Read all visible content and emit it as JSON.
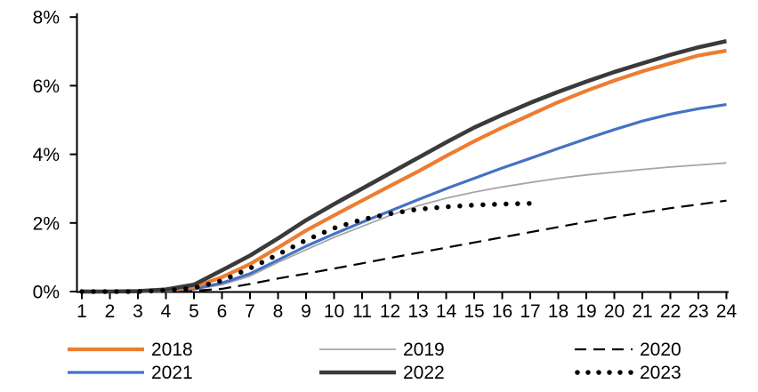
{
  "chart_data": {
    "type": "line",
    "title": "",
    "xlabel": "",
    "ylabel": "",
    "grid": false,
    "legend_position": "bottom",
    "xlim": [
      1,
      24
    ],
    "ylim": [
      0,
      8
    ],
    "y_tick_labels": [
      "0%",
      "2%",
      "4%",
      "6%",
      "8%"
    ],
    "y_tick_values": [
      0,
      2,
      4,
      6,
      8
    ],
    "categories": [
      "1",
      "2",
      "3",
      "4",
      "5",
      "6",
      "7",
      "8",
      "9",
      "10",
      "11",
      "12",
      "13",
      "14",
      "15",
      "16",
      "17",
      "18",
      "19",
      "20",
      "21",
      "22",
      "23",
      "24"
    ],
    "series": [
      {
        "name": "2018",
        "color": "#ED7D31",
        "style": "solid",
        "stroke_width": 4.2,
        "values": [
          0,
          0,
          0.01,
          0.04,
          0.13,
          0.42,
          0.8,
          1.28,
          1.78,
          2.22,
          2.65,
          3.08,
          3.5,
          3.95,
          4.38,
          4.78,
          5.15,
          5.52,
          5.85,
          6.15,
          6.42,
          6.65,
          6.88,
          7.02
        ]
      },
      {
        "name": "2019",
        "color": "#A6A6A6",
        "style": "solid",
        "stroke_width": 1.8,
        "values": [
          0,
          0,
          0,
          0.02,
          0.06,
          0.2,
          0.45,
          0.85,
          1.22,
          1.58,
          1.9,
          2.22,
          2.5,
          2.72,
          2.9,
          3.05,
          3.18,
          3.3,
          3.4,
          3.48,
          3.56,
          3.63,
          3.69,
          3.75
        ]
      },
      {
        "name": "2020",
        "color": "#000000",
        "style": "dashed",
        "stroke_width": 2.2,
        "values": [
          0,
          0,
          0,
          0,
          0.02,
          0.08,
          0.22,
          0.38,
          0.52,
          0.67,
          0.82,
          0.98,
          1.13,
          1.28,
          1.43,
          1.58,
          1.73,
          1.88,
          2.03,
          2.17,
          2.3,
          2.43,
          2.54,
          2.65
        ]
      },
      {
        "name": "2021",
        "color": "#4472C4",
        "style": "solid",
        "stroke_width": 3.2,
        "values": [
          0,
          0,
          0,
          0.02,
          0.08,
          0.25,
          0.52,
          0.92,
          1.32,
          1.68,
          2.02,
          2.35,
          2.68,
          3,
          3.3,
          3.6,
          3.88,
          4.17,
          4.45,
          4.72,
          4.97,
          5.17,
          5.33,
          5.45
        ]
      },
      {
        "name": "2022",
        "color": "#3A3A3A",
        "style": "solid",
        "stroke_width": 4.6,
        "values": [
          0,
          0,
          0.01,
          0.06,
          0.2,
          0.62,
          1.05,
          1.55,
          2.08,
          2.55,
          3,
          3.45,
          3.9,
          4.35,
          4.78,
          5.15,
          5.5,
          5.82,
          6.12,
          6.4,
          6.65,
          6.9,
          7.12,
          7.3
        ]
      },
      {
        "name": "2023",
        "color": "#000000",
        "style": "dotted",
        "stroke_width": 5.5,
        "values": [
          0,
          0,
          0,
          0.03,
          0.1,
          0.32,
          0.68,
          1.08,
          1.5,
          1.85,
          2.1,
          2.27,
          2.4,
          2.47,
          2.52,
          2.55,
          2.57,
          null,
          null,
          null,
          null,
          null,
          null,
          null
        ]
      }
    ],
    "legend_order": [
      "2018",
      "2019",
      "2020",
      "2021",
      "2022",
      "2023"
    ]
  }
}
